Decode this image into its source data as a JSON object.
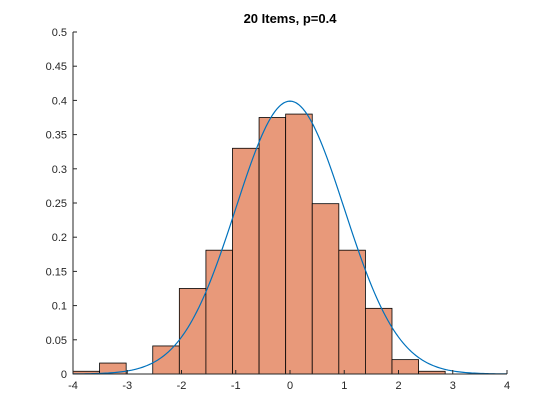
{
  "chart_data": {
    "type": "bar",
    "title": "20 Items, p=0.4",
    "xlabel": "",
    "ylabel": "",
    "xlim": [
      -4,
      4
    ],
    "ylim": [
      0,
      0.5
    ],
    "x_ticks": [
      -4,
      -3,
      -2,
      -1,
      0,
      1,
      2,
      3,
      4
    ],
    "y_ticks": [
      0,
      0.05,
      0.1,
      0.15,
      0.2,
      0.25,
      0.3,
      0.35,
      0.4,
      0.45,
      0.5
    ],
    "grid": false,
    "bin_width": 0.49,
    "bins": [
      {
        "x0": -4.0,
        "x1": -3.51,
        "value": 0.004
      },
      {
        "x0": -3.51,
        "x1": -3.02,
        "value": 0.016
      },
      {
        "x0": -3.02,
        "x1": -2.53,
        "value": 0.0
      },
      {
        "x0": -2.53,
        "x1": -2.04,
        "value": 0.041
      },
      {
        "x0": -2.04,
        "x1": -1.55,
        "value": 0.125
      },
      {
        "x0": -1.55,
        "x1": -1.06,
        "value": 0.181
      },
      {
        "x0": -1.06,
        "x1": -0.57,
        "value": 0.33
      },
      {
        "x0": -0.57,
        "x1": -0.08,
        "value": 0.375
      },
      {
        "x0": -0.08,
        "x1": 0.41,
        "value": 0.38
      },
      {
        "x0": 0.41,
        "x1": 0.9,
        "value": 0.249
      },
      {
        "x0": 0.9,
        "x1": 1.39,
        "value": 0.181
      },
      {
        "x0": 1.39,
        "x1": 1.88,
        "value": 0.096
      },
      {
        "x0": 1.88,
        "x1": 2.37,
        "value": 0.021
      },
      {
        "x0": 2.37,
        "x1": 2.86,
        "value": 0.004
      }
    ],
    "curve": {
      "type": "normal-pdf",
      "mean": 0,
      "sd": 1,
      "x_range": [
        -4,
        4
      ]
    },
    "colors": {
      "bar": "#e8997a",
      "curve": "#0072bd",
      "axis": "#262626"
    }
  }
}
